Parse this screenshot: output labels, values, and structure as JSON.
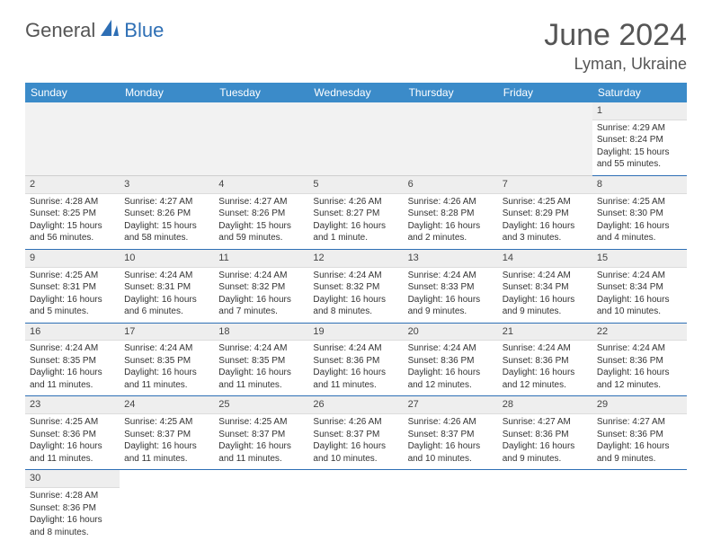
{
  "brand": {
    "part1": "General",
    "part2": "Blue"
  },
  "header": {
    "title": "June 2024",
    "location": "Lyman, Ukraine"
  },
  "colors": {
    "headerBar": "#3b8bc9",
    "rowLine": "#2e6fb5",
    "dayNumBg": "#eeeeee",
    "brandBlue": "#2e6fb5"
  },
  "columns": [
    "Sunday",
    "Monday",
    "Tuesday",
    "Wednesday",
    "Thursday",
    "Friday",
    "Saturday"
  ],
  "weeks": [
    [
      null,
      null,
      null,
      null,
      null,
      null,
      {
        "n": "1",
        "sr": "4:29 AM",
        "ss": "8:24 PM",
        "dl": "15 hours and 55 minutes."
      }
    ],
    [
      {
        "n": "2",
        "sr": "4:28 AM",
        "ss": "8:25 PM",
        "dl": "15 hours and 56 minutes."
      },
      {
        "n": "3",
        "sr": "4:27 AM",
        "ss": "8:26 PM",
        "dl": "15 hours and 58 minutes."
      },
      {
        "n": "4",
        "sr": "4:27 AM",
        "ss": "8:26 PM",
        "dl": "15 hours and 59 minutes."
      },
      {
        "n": "5",
        "sr": "4:26 AM",
        "ss": "8:27 PM",
        "dl": "16 hours and 1 minute."
      },
      {
        "n": "6",
        "sr": "4:26 AM",
        "ss": "8:28 PM",
        "dl": "16 hours and 2 minutes."
      },
      {
        "n": "7",
        "sr": "4:25 AM",
        "ss": "8:29 PM",
        "dl": "16 hours and 3 minutes."
      },
      {
        "n": "8",
        "sr": "4:25 AM",
        "ss": "8:30 PM",
        "dl": "16 hours and 4 minutes."
      }
    ],
    [
      {
        "n": "9",
        "sr": "4:25 AM",
        "ss": "8:31 PM",
        "dl": "16 hours and 5 minutes."
      },
      {
        "n": "10",
        "sr": "4:24 AM",
        "ss": "8:31 PM",
        "dl": "16 hours and 6 minutes."
      },
      {
        "n": "11",
        "sr": "4:24 AM",
        "ss": "8:32 PM",
        "dl": "16 hours and 7 minutes."
      },
      {
        "n": "12",
        "sr": "4:24 AM",
        "ss": "8:32 PM",
        "dl": "16 hours and 8 minutes."
      },
      {
        "n": "13",
        "sr": "4:24 AM",
        "ss": "8:33 PM",
        "dl": "16 hours and 9 minutes."
      },
      {
        "n": "14",
        "sr": "4:24 AM",
        "ss": "8:34 PM",
        "dl": "16 hours and 9 minutes."
      },
      {
        "n": "15",
        "sr": "4:24 AM",
        "ss": "8:34 PM",
        "dl": "16 hours and 10 minutes."
      }
    ],
    [
      {
        "n": "16",
        "sr": "4:24 AM",
        "ss": "8:35 PM",
        "dl": "16 hours and 11 minutes."
      },
      {
        "n": "17",
        "sr": "4:24 AM",
        "ss": "8:35 PM",
        "dl": "16 hours and 11 minutes."
      },
      {
        "n": "18",
        "sr": "4:24 AM",
        "ss": "8:35 PM",
        "dl": "16 hours and 11 minutes."
      },
      {
        "n": "19",
        "sr": "4:24 AM",
        "ss": "8:36 PM",
        "dl": "16 hours and 11 minutes."
      },
      {
        "n": "20",
        "sr": "4:24 AM",
        "ss": "8:36 PM",
        "dl": "16 hours and 12 minutes."
      },
      {
        "n": "21",
        "sr": "4:24 AM",
        "ss": "8:36 PM",
        "dl": "16 hours and 12 minutes."
      },
      {
        "n": "22",
        "sr": "4:24 AM",
        "ss": "8:36 PM",
        "dl": "16 hours and 12 minutes."
      }
    ],
    [
      {
        "n": "23",
        "sr": "4:25 AM",
        "ss": "8:36 PM",
        "dl": "16 hours and 11 minutes."
      },
      {
        "n": "24",
        "sr": "4:25 AM",
        "ss": "8:37 PM",
        "dl": "16 hours and 11 minutes."
      },
      {
        "n": "25",
        "sr": "4:25 AM",
        "ss": "8:37 PM",
        "dl": "16 hours and 11 minutes."
      },
      {
        "n": "26",
        "sr": "4:26 AM",
        "ss": "8:37 PM",
        "dl": "16 hours and 10 minutes."
      },
      {
        "n": "27",
        "sr": "4:26 AM",
        "ss": "8:37 PM",
        "dl": "16 hours and 10 minutes."
      },
      {
        "n": "28",
        "sr": "4:27 AM",
        "ss": "8:36 PM",
        "dl": "16 hours and 9 minutes."
      },
      {
        "n": "29",
        "sr": "4:27 AM",
        "ss": "8:36 PM",
        "dl": "16 hours and 9 minutes."
      }
    ],
    [
      {
        "n": "30",
        "sr": "4:28 AM",
        "ss": "8:36 PM",
        "dl": "16 hours and 8 minutes."
      },
      null,
      null,
      null,
      null,
      null,
      null
    ]
  ],
  "labels": {
    "sunrise": "Sunrise:",
    "sunset": "Sunset:",
    "daylight": "Daylight:"
  }
}
